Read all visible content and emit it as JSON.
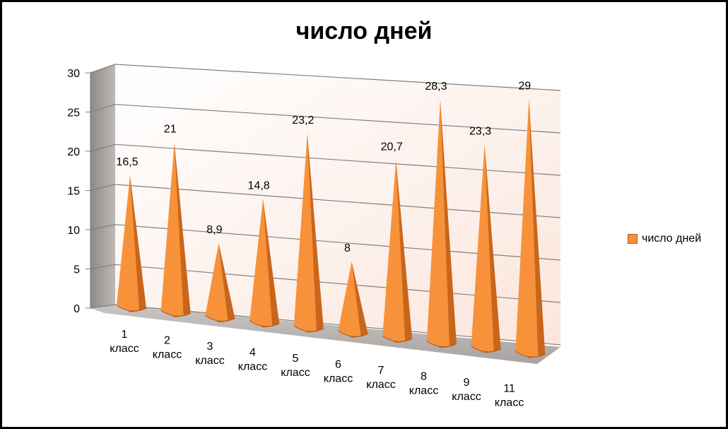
{
  "chart_data": {
    "type": "bar",
    "bar_shape": "cone",
    "title": "число дней",
    "categories": [
      "1 класс",
      "2 класс",
      "3 класс",
      "4 класс",
      "5 класс",
      "6 класс",
      "7 класс",
      "8 класс",
      "9 класс",
      "11 класс"
    ],
    "series": [
      {
        "name": "число дней",
        "values": [
          16.5,
          21,
          8.9,
          14.8,
          23.2,
          8,
          20.7,
          28.3,
          23.3,
          29
        ]
      }
    ],
    "data_labels": [
      "16,5",
      "21",
      "8,9",
      "14,8",
      "23,2",
      "8",
      "20,7",
      "28,3",
      "23,3",
      "29"
    ],
    "y_ticks": [
      "0",
      "5",
      "10",
      "15",
      "20",
      "25",
      "30"
    ],
    "ylim": [
      0,
      30
    ],
    "grid": true,
    "legend": "right",
    "colors": {
      "bar": "#F7923A",
      "bar_dark": "#C8661C",
      "wall": "#FCEFEA",
      "floor": "#B9B4B2"
    }
  }
}
